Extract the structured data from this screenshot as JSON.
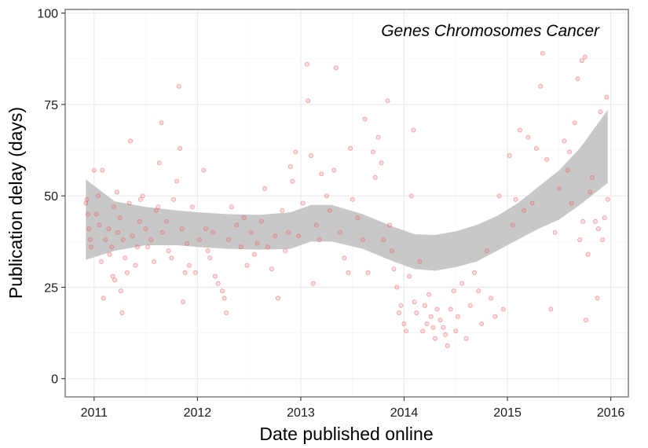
{
  "chart_data": {
    "type": "scatter",
    "annotation": "Genes Chromosomes Cancer",
    "xlabel": "Date published online",
    "ylabel": "Publication delay (days)",
    "xlim": [
      2010.72,
      2016.17
    ],
    "ylim": [
      -5,
      101
    ],
    "x_ticks": [
      2011,
      2012,
      2013,
      2014,
      2015,
      2016
    ],
    "x_tick_labels": [
      "2011",
      "2012",
      "2013",
      "2014",
      "2015",
      "2016"
    ],
    "y_ticks": [
      0,
      25,
      50,
      75,
      100
    ],
    "y_tick_labels": [
      "0",
      "25",
      "50",
      "75",
      "100"
    ],
    "grid": true,
    "point_color": "#f06464",
    "band_color": "#c8c8c8",
    "points": [
      [
        2010.92,
        48
      ],
      [
        2010.93,
        49
      ],
      [
        2010.94,
        45
      ],
      [
        2010.95,
        41
      ],
      [
        2010.96,
        38
      ],
      [
        2010.97,
        36
      ],
      [
        2011.0,
        57
      ],
      [
        2011.02,
        45
      ],
      [
        2011.04,
        50
      ],
      [
        2011.05,
        42
      ],
      [
        2011.07,
        32
      ],
      [
        2011.08,
        57
      ],
      [
        2011.09,
        22
      ],
      [
        2011.11,
        38
      ],
      [
        2011.14,
        41
      ],
      [
        2011.15,
        34
      ],
      [
        2011.17,
        36
      ],
      [
        2011.18,
        28
      ],
      [
        2011.19,
        47
      ],
      [
        2011.2,
        27
      ],
      [
        2011.22,
        51
      ],
      [
        2011.23,
        40
      ],
      [
        2011.25,
        44
      ],
      [
        2011.26,
        24
      ],
      [
        2011.27,
        18
      ],
      [
        2011.28,
        38
      ],
      [
        2011.3,
        33
      ],
      [
        2011.32,
        29
      ],
      [
        2011.34,
        48
      ],
      [
        2011.35,
        65
      ],
      [
        2011.37,
        39
      ],
      [
        2011.4,
        31
      ],
      [
        2011.42,
        36
      ],
      [
        2011.44,
        43
      ],
      [
        2011.45,
        49
      ],
      [
        2011.47,
        50
      ],
      [
        2011.5,
        41
      ],
      [
        2011.52,
        36
      ],
      [
        2011.55,
        38
      ],
      [
        2011.58,
        32
      ],
      [
        2011.6,
        46
      ],
      [
        2011.62,
        47
      ],
      [
        2011.63,
        59
      ],
      [
        2011.65,
        70
      ],
      [
        2011.66,
        40
      ],
      [
        2011.7,
        43
      ],
      [
        2011.72,
        35
      ],
      [
        2011.75,
        33
      ],
      [
        2011.77,
        49
      ],
      [
        2011.8,
        54
      ],
      [
        2011.82,
        80
      ],
      [
        2011.83,
        63
      ],
      [
        2011.85,
        41
      ],
      [
        2011.86,
        21
      ],
      [
        2011.88,
        29
      ],
      [
        2011.9,
        37
      ],
      [
        2011.92,
        31
      ],
      [
        2011.95,
        47
      ],
      [
        2011.98,
        29
      ],
      [
        2012.02,
        38
      ],
      [
        2012.06,
        57
      ],
      [
        2012.08,
        41
      ],
      [
        2012.1,
        35
      ],
      [
        2012.12,
        33
      ],
      [
        2012.15,
        40
      ],
      [
        2012.17,
        28
      ],
      [
        2012.2,
        26
      ],
      [
        2012.24,
        24
      ],
      [
        2012.26,
        22
      ],
      [
        2012.28,
        18
      ],
      [
        2012.3,
        38
      ],
      [
        2012.33,
        47
      ],
      [
        2012.38,
        42
      ],
      [
        2012.42,
        36
      ],
      [
        2012.45,
        44
      ],
      [
        2012.48,
        31
      ],
      [
        2012.52,
        40
      ],
      [
        2012.55,
        34
      ],
      [
        2012.58,
        37
      ],
      [
        2012.62,
        43
      ],
      [
        2012.65,
        52
      ],
      [
        2012.68,
        36
      ],
      [
        2012.72,
        30
      ],
      [
        2012.75,
        39
      ],
      [
        2012.78,
        22
      ],
      [
        2012.82,
        46
      ],
      [
        2012.85,
        35
      ],
      [
        2012.88,
        40
      ],
      [
        2012.9,
        58
      ],
      [
        2012.92,
        54
      ],
      [
        2012.95,
        62
      ],
      [
        2012.98,
        39
      ],
      [
        2013.02,
        48
      ],
      [
        2013.06,
        86
      ],
      [
        2013.07,
        76
      ],
      [
        2013.1,
        61
      ],
      [
        2013.12,
        26
      ],
      [
        2013.15,
        42
      ],
      [
        2013.18,
        38
      ],
      [
        2013.2,
        56
      ],
      [
        2013.25,
        50
      ],
      [
        2013.28,
        46
      ],
      [
        2013.32,
        57
      ],
      [
        2013.34,
        85
      ],
      [
        2013.38,
        40
      ],
      [
        2013.42,
        33
      ],
      [
        2013.46,
        29
      ],
      [
        2013.48,
        63
      ],
      [
        2013.5,
        49
      ],
      [
        2013.55,
        44
      ],
      [
        2013.6,
        38
      ],
      [
        2013.62,
        71
      ],
      [
        2013.65,
        29
      ],
      [
        2013.7,
        62
      ],
      [
        2013.72,
        55
      ],
      [
        2013.75,
        66
      ],
      [
        2013.78,
        59
      ],
      [
        2013.8,
        38
      ],
      [
        2013.84,
        76
      ],
      [
        2013.86,
        42
      ],
      [
        2013.88,
        35
      ],
      [
        2013.9,
        30
      ],
      [
        2013.93,
        25
      ],
      [
        2013.95,
        18
      ],
      [
        2013.97,
        20
      ],
      [
        2014.0,
        15
      ],
      [
        2014.02,
        13
      ],
      [
        2014.05,
        28
      ],
      [
        2014.07,
        50
      ],
      [
        2014.09,
        68
      ],
      [
        2014.1,
        21
      ],
      [
        2014.12,
        18
      ],
      [
        2014.15,
        32
      ],
      [
        2014.18,
        13
      ],
      [
        2014.2,
        20
      ],
      [
        2014.22,
        15
      ],
      [
        2014.24,
        23
      ],
      [
        2014.26,
        17
      ],
      [
        2014.28,
        14
      ],
      [
        2014.3,
        11
      ],
      [
        2014.32,
        19
      ],
      [
        2014.35,
        16
      ],
      [
        2014.38,
        14
      ],
      [
        2014.4,
        12
      ],
      [
        2014.42,
        9
      ],
      [
        2014.45,
        19
      ],
      [
        2014.48,
        24
      ],
      [
        2014.5,
        13
      ],
      [
        2014.52,
        17
      ],
      [
        2014.56,
        26
      ],
      [
        2014.6,
        11
      ],
      [
        2014.64,
        20
      ],
      [
        2014.68,
        29
      ],
      [
        2014.72,
        24
      ],
      [
        2014.75,
        15
      ],
      [
        2014.8,
        35
      ],
      [
        2014.84,
        22
      ],
      [
        2014.88,
        17
      ],
      [
        2014.92,
        50
      ],
      [
        2014.96,
        19
      ],
      [
        2015.02,
        61
      ],
      [
        2015.05,
        42
      ],
      [
        2015.08,
        49
      ],
      [
        2015.12,
        68
      ],
      [
        2015.16,
        46
      ],
      [
        2015.2,
        66
      ],
      [
        2015.24,
        48
      ],
      [
        2015.28,
        63
      ],
      [
        2015.32,
        80
      ],
      [
        2015.34,
        89
      ],
      [
        2015.38,
        60
      ],
      [
        2015.42,
        19
      ],
      [
        2015.46,
        40
      ],
      [
        2015.5,
        52
      ],
      [
        2015.55,
        65
      ],
      [
        2015.58,
        57
      ],
      [
        2015.6,
        62
      ],
      [
        2015.62,
        48
      ],
      [
        2015.65,
        70
      ],
      [
        2015.68,
        82
      ],
      [
        2015.7,
        38
      ],
      [
        2015.72,
        87
      ],
      [
        2015.73,
        43
      ],
      [
        2015.75,
        88
      ],
      [
        2015.76,
        16
      ],
      [
        2015.78,
        34
      ],
      [
        2015.8,
        51
      ],
      [
        2015.82,
        55
      ],
      [
        2015.85,
        43
      ],
      [
        2015.87,
        22
      ],
      [
        2015.88,
        41
      ],
      [
        2015.9,
        73
      ],
      [
        2015.92,
        38
      ],
      [
        2015.94,
        44
      ],
      [
        2015.96,
        77
      ],
      [
        2015.97,
        49
      ]
    ],
    "band_x": [
      2010.92,
      2011.2,
      2011.5,
      2011.8,
      2012.0,
      2012.3,
      2012.6,
      2012.9,
      2013.1,
      2013.3,
      2013.6,
      2013.9,
      2014.1,
      2014.3,
      2014.5,
      2014.7,
      2014.9,
      2015.1,
      2015.3,
      2015.5,
      2015.7,
      2015.97
    ],
    "band_upper": [
      54.5,
      48.5,
      47.0,
      46.0,
      45.5,
      45.0,
      44.8,
      45.5,
      47.5,
      47.5,
      45.0,
      41.5,
      39.5,
      39.3,
      40.3,
      42.0,
      44.5,
      48.0,
      52.5,
      57.0,
      63.0,
      73.5
    ],
    "band_lower": [
      32.5,
      35.0,
      36.5,
      36.5,
      36.0,
      35.5,
      35.3,
      35.5,
      37.5,
      37.5,
      35.5,
      32.0,
      30.0,
      29.5,
      30.5,
      32.0,
      35.0,
      38.0,
      41.0,
      43.5,
      47.5,
      53.5
    ]
  }
}
